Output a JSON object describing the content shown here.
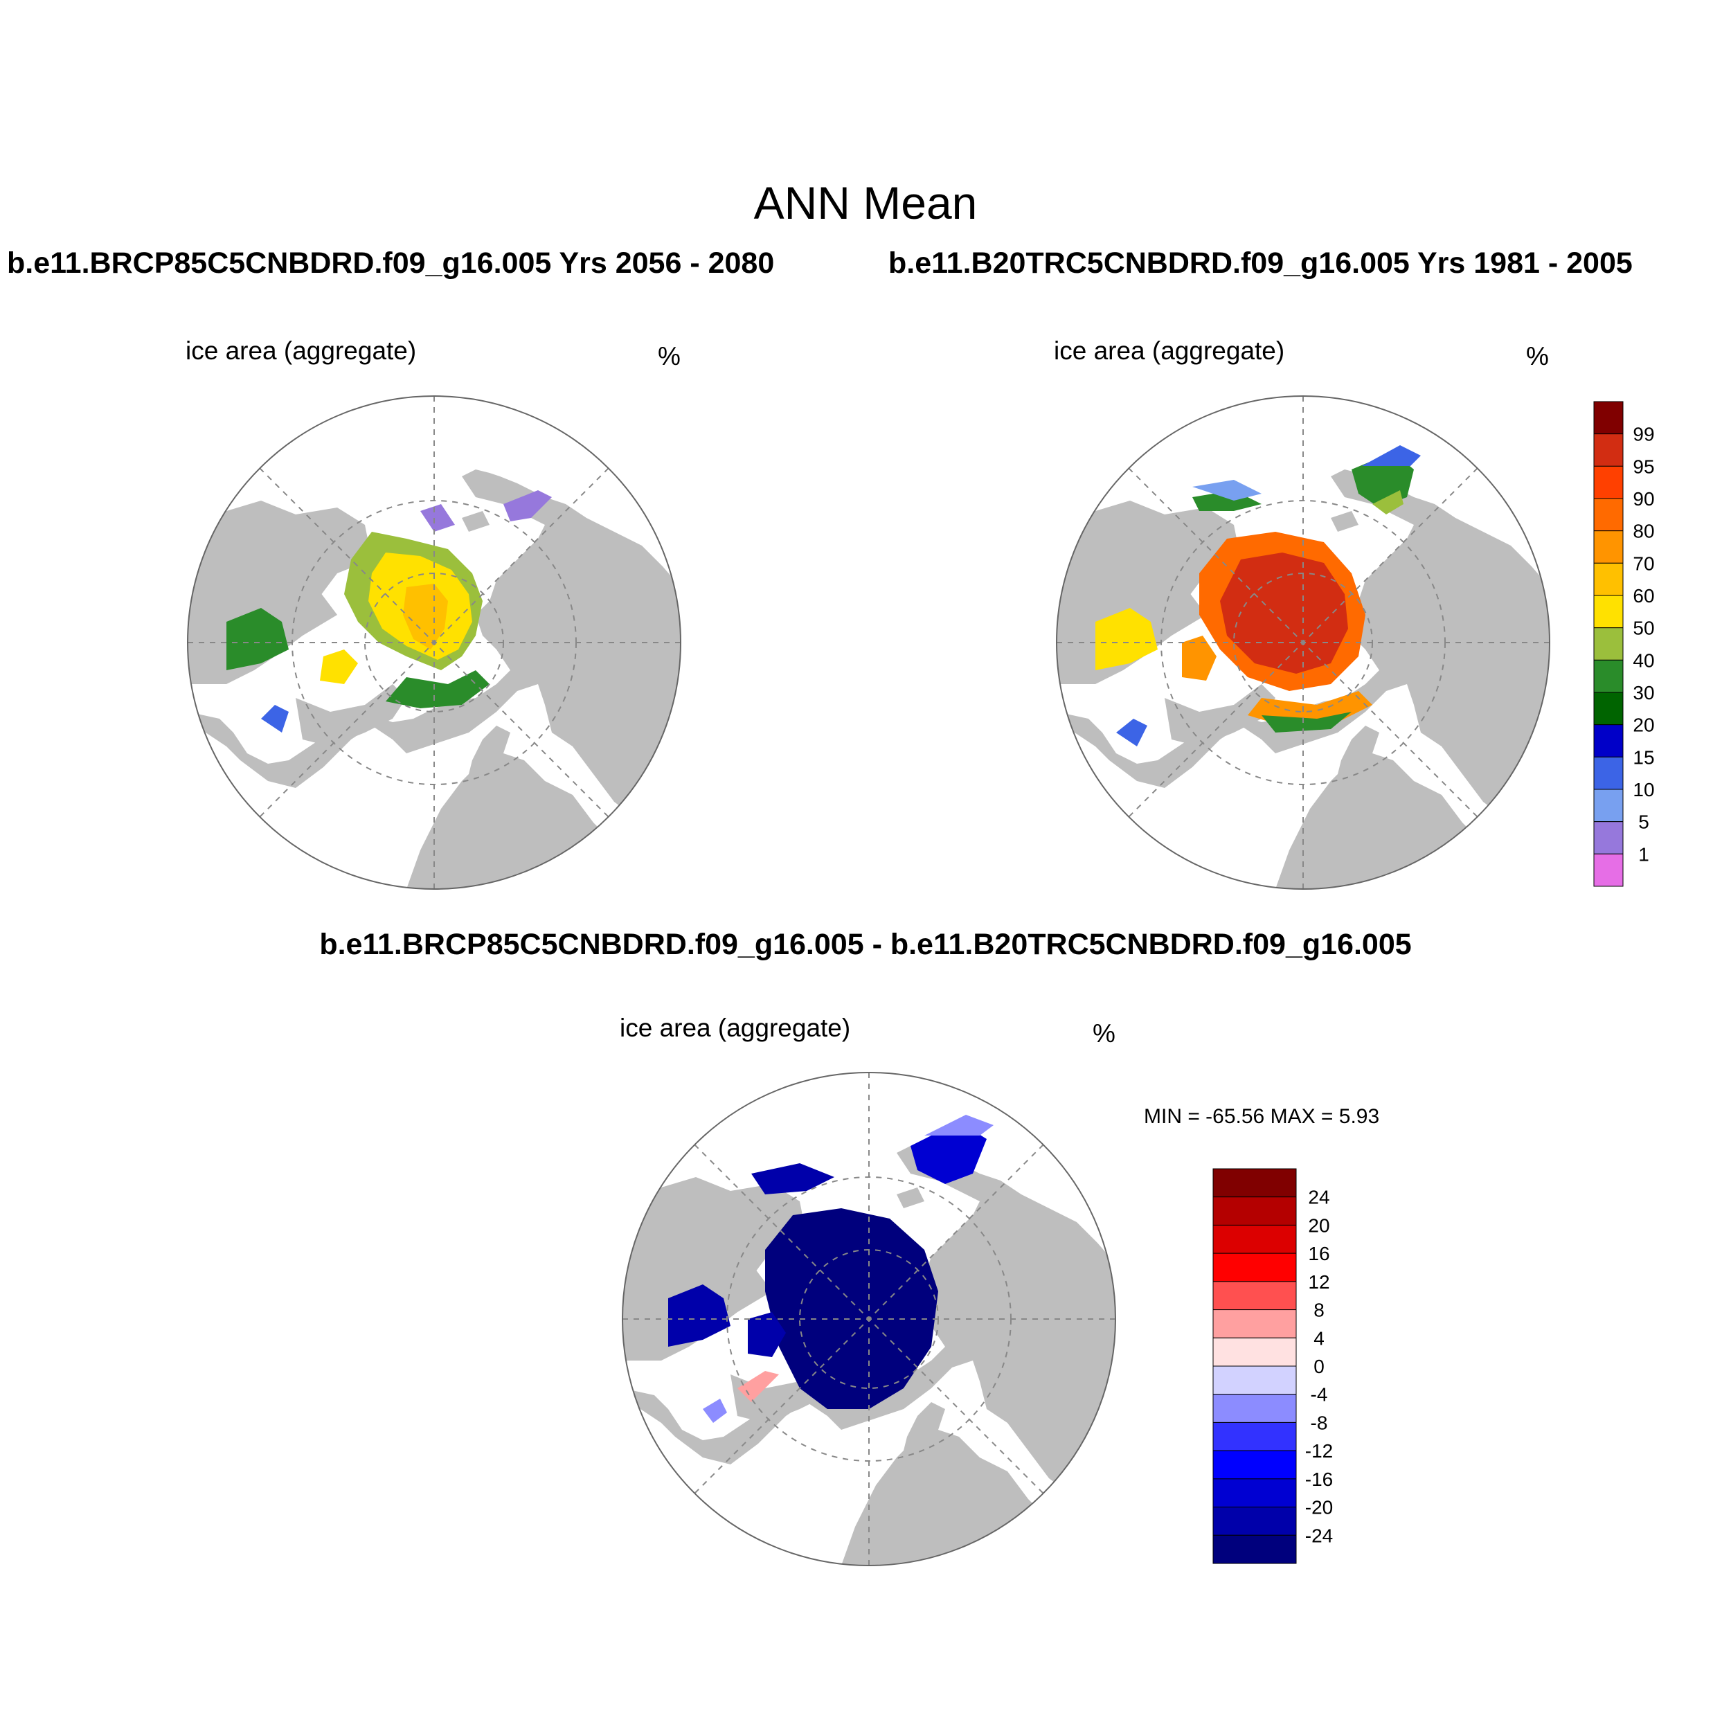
{
  "main_title": "ANN Mean",
  "panel1": {
    "case_title": "b.e11.BRCP85C5CNBDRD.f09_g16.005  Yrs 2056 - 2080",
    "variable": "ice area  (aggregate)",
    "units": "%"
  },
  "panel2": {
    "case_title": "b.e11.B20TRC5CNBDRD.f09_g16.005  Yrs 1981 - 2005",
    "variable": "ice area  (aggregate)",
    "units": "%"
  },
  "panel3": {
    "case_title": "b.e11.BRCP85C5CNBDRD.f09_g16.005 - b.e11.B20TRC5CNBDRD.f09_g16.005",
    "variable": "ice area  (aggregate)",
    "units": "%",
    "stats": "MIN = -65.56 MAX =   5.93"
  },
  "colorbar_abs": {
    "labels": [
      "99",
      "95",
      "90",
      "80",
      "70",
      "60",
      "50",
      "40",
      "30",
      "20",
      "15",
      "10",
      "5",
      "1"
    ],
    "colors": [
      "#800000",
      "#d22d12",
      "#ff4000",
      "#ff6a00",
      "#ff9400",
      "#ffc000",
      "#ffe100",
      "#9bbf3c",
      "#2a8c2a",
      "#006400",
      "#0000c8",
      "#3c64e6",
      "#78a0f0",
      "#9678dc",
      "#e66ee6"
    ]
  },
  "colorbar_diff": {
    "labels": [
      "24",
      "20",
      "16",
      "12",
      "8",
      "4",
      "0",
      "-4",
      "-8",
      "-12",
      "-16",
      "-20",
      "-24"
    ],
    "colors": [
      "#800000",
      "#b40000",
      "#dc0000",
      "#ff0000",
      "#ff5050",
      "#ffa0a0",
      "#ffe1e1",
      "#d2d2ff",
      "#8c8cff",
      "#3232ff",
      "#0000ff",
      "#0000d2",
      "#0000aa",
      "#00007d"
    ]
  },
  "map_colors": {
    "land": "#bebebe",
    "ocean": "#ffffff",
    "grid": "#888888"
  }
}
